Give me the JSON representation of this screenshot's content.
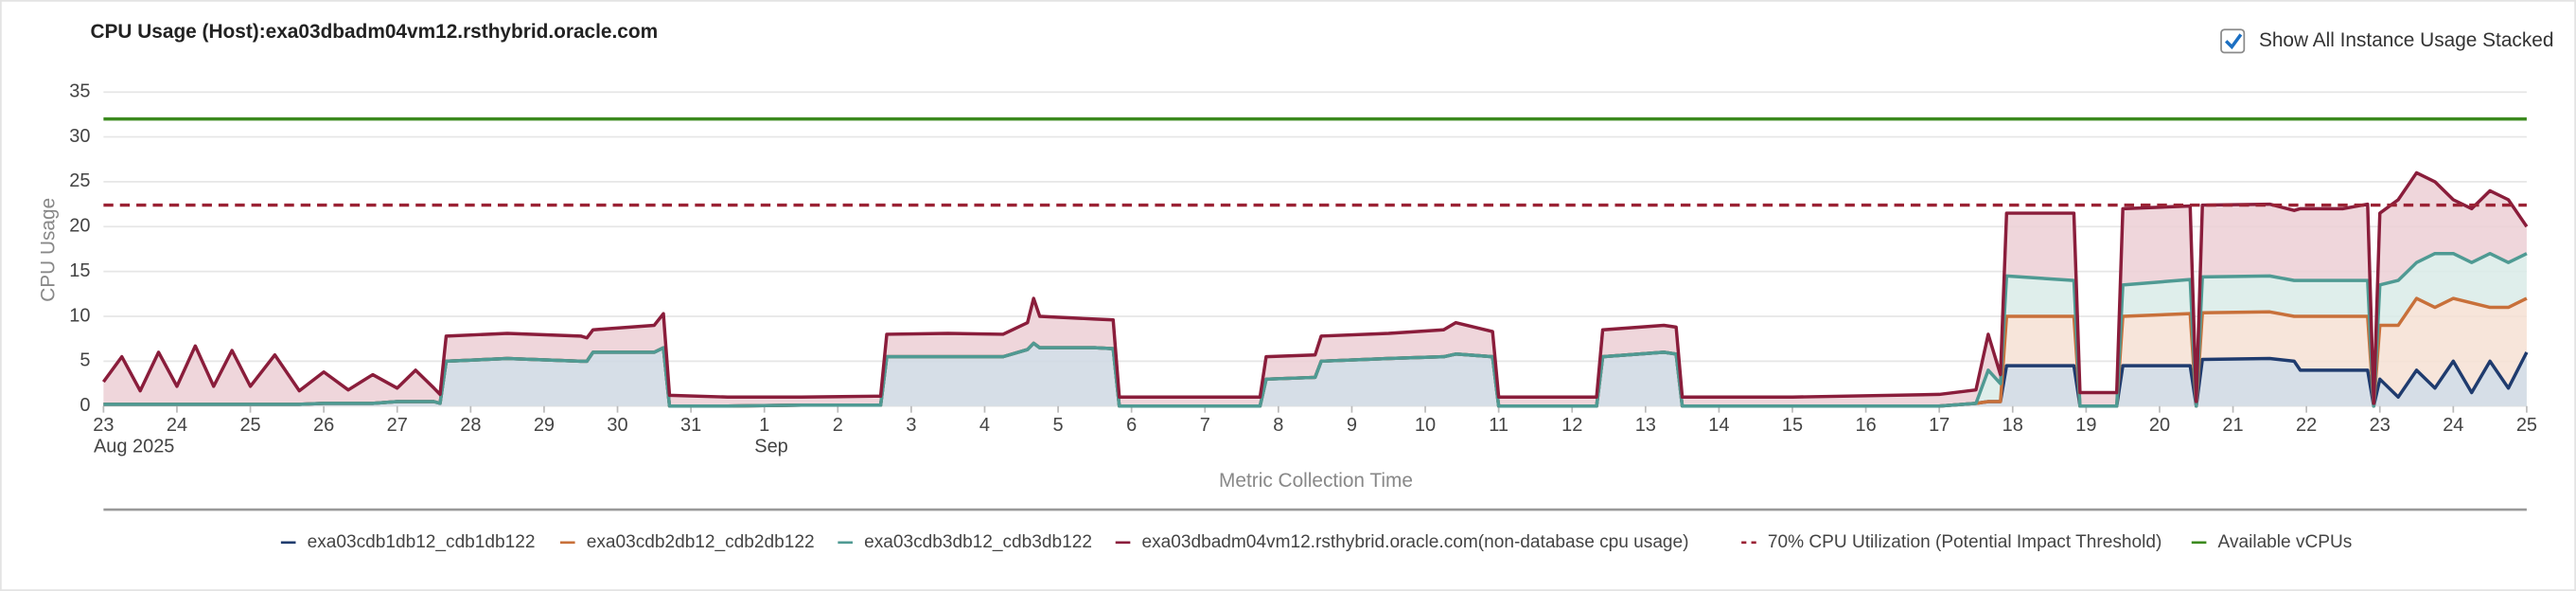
{
  "controls": {
    "stack_checkbox": {
      "label": "Show All Instance Usage Stacked",
      "checked": true
    }
  },
  "chart_data": {
    "type": "stacked_area",
    "title": "CPU Usage (Host):exa03dbadm04vm12.rsthybrid.oracle.com",
    "y_label": "CPU Usage",
    "x_label": "Metric Collection Time",
    "stacked": true,
    "grid": true,
    "ylim": [
      0,
      35
    ],
    "yticks": [
      0,
      5,
      10,
      15,
      20,
      25,
      30,
      35
    ],
    "xlim": [
      "2025-08-23",
      "2025-09-25"
    ],
    "xticks": [
      {
        "value": "2025-08-23",
        "label": "23"
      },
      {
        "value": "2025-08-24",
        "label": "24"
      },
      {
        "value": "2025-08-25",
        "label": "25"
      },
      {
        "value": "2025-08-26",
        "label": "26"
      },
      {
        "value": "2025-08-27",
        "label": "27"
      },
      {
        "value": "2025-08-28",
        "label": "28"
      },
      {
        "value": "2025-08-29",
        "label": "29"
      },
      {
        "value": "2025-08-30",
        "label": "30"
      },
      {
        "value": "2025-08-31",
        "label": "31"
      },
      {
        "value": "2025-09-01",
        "label": "1"
      },
      {
        "value": "2025-09-02",
        "label": "2"
      },
      {
        "value": "2025-09-03",
        "label": "3"
      },
      {
        "value": "2025-09-04",
        "label": "4"
      },
      {
        "value": "2025-09-05",
        "label": "5"
      },
      {
        "value": "2025-09-06",
        "label": "6"
      },
      {
        "value": "2025-09-07",
        "label": "7"
      },
      {
        "value": "2025-09-08",
        "label": "8"
      },
      {
        "value": "2025-09-09",
        "label": "9"
      },
      {
        "value": "2025-09-10",
        "label": "10"
      },
      {
        "value": "2025-09-11",
        "label": "11"
      },
      {
        "value": "2025-09-12",
        "label": "12"
      },
      {
        "value": "2025-09-13",
        "label": "13"
      },
      {
        "value": "2025-09-14",
        "label": "14"
      },
      {
        "value": "2025-09-15",
        "label": "15"
      },
      {
        "value": "2025-09-16",
        "label": "16"
      },
      {
        "value": "2025-09-17",
        "label": "17"
      },
      {
        "value": "2025-09-18",
        "label": "18"
      },
      {
        "value": "2025-09-19",
        "label": "19"
      },
      {
        "value": "2025-09-20",
        "label": "20"
      },
      {
        "value": "2025-09-21",
        "label": "21"
      },
      {
        "value": "2025-09-22",
        "label": "22"
      },
      {
        "value": "2025-09-23",
        "label": "23"
      },
      {
        "value": "2025-09-24",
        "label": "24"
      },
      {
        "value": "2025-09-25",
        "label": "25"
      }
    ],
    "x_period_labels": [
      {
        "value": "2025-08-23",
        "label": "Aug 2025"
      },
      {
        "value": "2025-09-01",
        "label": "Sep"
      }
    ],
    "x": [
      "2025-08-23T00:00",
      "2025-08-23T06:00",
      "2025-08-23T12:00",
      "2025-08-23T18:00",
      "2025-08-24T00:00",
      "2025-08-24T06:00",
      "2025-08-24T12:00",
      "2025-08-24T18:00",
      "2025-08-25T00:00",
      "2025-08-25T08:00",
      "2025-08-25T16:00",
      "2025-08-26T00:00",
      "2025-08-26T08:00",
      "2025-08-26T16:00",
      "2025-08-27T00:00",
      "2025-08-27T06:00",
      "2025-08-27T12:00",
      "2025-08-27T14:00",
      "2025-08-27T16:00",
      "2025-08-28T12:00",
      "2025-08-29T12:00",
      "2025-08-29T14:00",
      "2025-08-29T16:00",
      "2025-08-30T12:00",
      "2025-08-30T15:00",
      "2025-08-30T17:00",
      "2025-08-31T12:00",
      "2025-09-01T12:00",
      "2025-09-02T12:00",
      "2025-09-02T14:00",
      "2025-09-02T16:00",
      "2025-09-03T12:00",
      "2025-09-04T06:00",
      "2025-09-04T14:00",
      "2025-09-04T16:00",
      "2025-09-04T18:00",
      "2025-09-05T12:00",
      "2025-09-05T18:00",
      "2025-09-05T20:00",
      "2025-09-06T12:00",
      "2025-09-07T12:00",
      "2025-09-07T18:00",
      "2025-09-07T20:00",
      "2025-09-08T12:00",
      "2025-09-08T14:00",
      "2025-09-09T12:00",
      "2025-09-10T06:00",
      "2025-09-10T10:00",
      "2025-09-10T22:00",
      "2025-09-11T00:00",
      "2025-09-12T00:00",
      "2025-09-12T08:00",
      "2025-09-12T10:00",
      "2025-09-13T06:00",
      "2025-09-13T10:00",
      "2025-09-13T12:00",
      "2025-09-15T00:00",
      "2025-09-17T00:00",
      "2025-09-17T12:00",
      "2025-09-17T16:00",
      "2025-09-17T20:00",
      "2025-09-17T22:00",
      "2025-09-18T20:00",
      "2025-09-18T22:00",
      "2025-09-19T10:00",
      "2025-09-19T12:00",
      "2025-09-20T10:00",
      "2025-09-20T12:00",
      "2025-09-20T14:00",
      "2025-09-21T12:00",
      "2025-09-21T20:00",
      "2025-09-21T22:00",
      "2025-09-22T12:00",
      "2025-09-22T20:00",
      "2025-09-22T22:00",
      "2025-09-23T00:00",
      "2025-09-23T06:00",
      "2025-09-23T12:00",
      "2025-09-23T18:00",
      "2025-09-24T00:00",
      "2025-09-24T06:00",
      "2025-09-24T12:00",
      "2025-09-24T18:00",
      "2025-09-25T00:00"
    ],
    "series": [
      {
        "name": "exa03cdb1db12_cdb1db122",
        "color": "#1f3b6e",
        "fill": "#cfd8e3",
        "values": [
          0.2,
          0.2,
          0.2,
          0.2,
          0.2,
          0.2,
          0.2,
          0.2,
          0.2,
          0.2,
          0.2,
          0.3,
          0.3,
          0.3,
          0.5,
          0.5,
          0.5,
          0.3,
          5,
          5.3,
          5,
          5,
          6,
          6,
          6.5,
          0,
          0,
          0.1,
          0.1,
          0.1,
          5.5,
          5.5,
          5.5,
          6.3,
          7,
          6.5,
          6.5,
          6.4,
          0,
          0,
          0,
          0,
          3,
          3.2,
          5,
          5.3,
          5.5,
          5.8,
          5.5,
          0,
          0,
          0,
          5.5,
          6,
          5.8,
          0,
          0,
          0,
          0.3,
          0.5,
          0.5,
          4.5,
          4.5,
          0,
          0,
          4.5,
          4.5,
          0,
          5.2,
          5.3,
          5,
          4,
          4,
          4,
          0,
          3,
          1,
          4,
          2,
          5,
          1.5,
          5,
          2,
          6
        ]
      },
      {
        "name": "exa03cdb2db12_cdb2db122",
        "color": "#c8703a",
        "fill": "#f6e1d3",
        "values": [
          0,
          0,
          0,
          0,
          0,
          0,
          0,
          0,
          0,
          0,
          0,
          0,
          0,
          0,
          0,
          0,
          0,
          0,
          0,
          0,
          0,
          0,
          0,
          0,
          0,
          0,
          0,
          0,
          0,
          0,
          0,
          0,
          0,
          0,
          0,
          0,
          0,
          0,
          0,
          0,
          0,
          0,
          0,
          0,
          0,
          0,
          0,
          0,
          0,
          0,
          0,
          0,
          0,
          0,
          0,
          0,
          0,
          0,
          0,
          0,
          0,
          5.5,
          5.5,
          0,
          0,
          5.5,
          5.8,
          0,
          5.2,
          5.2,
          5,
          6,
          6,
          6,
          0,
          6,
          8,
          8,
          9,
          7,
          10,
          6,
          9,
          6
        ]
      },
      {
        "name": "exa03cdb3db12_cdb3db122",
        "color": "#4f9a93",
        "fill": "#d9ebe8",
        "values": [
          0,
          0,
          0,
          0,
          0,
          0,
          0,
          0,
          0,
          0,
          0,
          0,
          0,
          0,
          0,
          0,
          0,
          0,
          0,
          0,
          0,
          0,
          0,
          0,
          0,
          0,
          0,
          0,
          0,
          0,
          0,
          0,
          0,
          0,
          0,
          0,
          0,
          0,
          0,
          0,
          0,
          0,
          0,
          0,
          0,
          0,
          0,
          0,
          0,
          0,
          0,
          0,
          0,
          0,
          0,
          0,
          0,
          0,
          0,
          3.5,
          2,
          4.5,
          4,
          0,
          0,
          3.5,
          3.8,
          0,
          4,
          4,
          4,
          4,
          4,
          4,
          0,
          4.5,
          5,
          4,
          6,
          5,
          4.5,
          6,
          5,
          5
        ]
      },
      {
        "name": "exa03dbadm04vm12.rsthybrid.oracle.com(non-database cpu usage)",
        "color": "#8a1d3b",
        "fill": "#eccfd5",
        "values": [
          2.5,
          5.3,
          1.5,
          5.8,
          2,
          6.5,
          2,
          6,
          2,
          5.5,
          1.5,
          3.5,
          1.5,
          3.2,
          1.5,
          3.5,
          1.5,
          1,
          2.8,
          2.8,
          2.8,
          2.6,
          2.5,
          3,
          3.8,
          1.2,
          1,
          0.9,
          1,
          1,
          2.5,
          2.6,
          2.5,
          3,
          5,
          3.5,
          3.2,
          3.2,
          1,
          1,
          1,
          1,
          2.5,
          2.5,
          2.8,
          2.8,
          3,
          3.5,
          2.8,
          1,
          1,
          1,
          3,
          3,
          3,
          1,
          1,
          1.3,
          1.5,
          4,
          1,
          7,
          7.5,
          1.5,
          1.5,
          8.5,
          8.2,
          0.5,
          8,
          8,
          7.8,
          8,
          8,
          8.5,
          0.3,
          8,
          9,
          10,
          8,
          6,
          6,
          7,
          7,
          3
        ]
      }
    ],
    "reference_lines": [
      {
        "name": "70% CPU Utilization (Potential Impact Threshold)",
        "value": 22.4,
        "color": "#9b2335",
        "dashed": true
      },
      {
        "name": "Available vCPUs",
        "value": 32,
        "color": "#3b8a1e",
        "dashed": false
      }
    ]
  }
}
